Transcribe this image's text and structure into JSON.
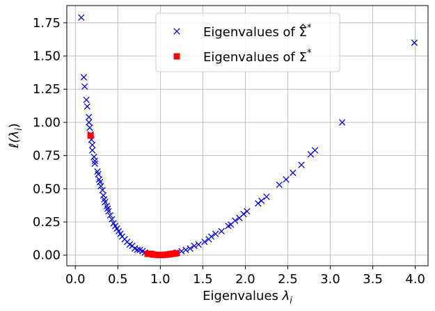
{
  "chart_data": {
    "type": "scatter",
    "xlabel": "Eigenvalues",
    "xlabel_symbol": "λ",
    "xlabel_sub": "i",
    "ylabel": "ℓ(λ",
    "ylabel_sub": "i",
    "ylabel_close": ")",
    "xlim": [
      -0.1,
      4.15
    ],
    "ylim": [
      -0.08,
      1.88
    ],
    "x_ticks": [
      0.0,
      0.5,
      1.0,
      1.5,
      2.0,
      2.5,
      3.0,
      3.5,
      4.0
    ],
    "y_ticks": [
      0.0,
      0.25,
      0.5,
      0.75,
      1.0,
      1.25,
      1.5,
      1.75
    ],
    "x_tick_labels": [
      "0.0",
      "0.5",
      "1.0",
      "1.5",
      "2.0",
      "2.5",
      "3.0",
      "3.5",
      "4.0"
    ],
    "y_tick_labels": [
      "0.00",
      "0.25",
      "0.50",
      "0.75",
      "1.00",
      "1.25",
      "1.50",
      "1.75"
    ],
    "grid": true,
    "legend_position": "top-center",
    "series": [
      {
        "name": "Eigenvalues of Σ̂*",
        "legend_prefix": "Eigenvalues of ",
        "legend_symbol": "Σ",
        "legend_hat": true,
        "legend_sup": "*",
        "marker": "x",
        "color": "#0000ff",
        "points": [
          [
            0.07,
            1.79
          ],
          [
            0.1,
            1.34
          ],
          [
            0.11,
            1.27
          ],
          [
            0.13,
            1.17
          ],
          [
            0.14,
            1.12
          ],
          [
            0.16,
            1.04
          ],
          [
            0.16,
            1.0
          ],
          [
            0.17,
            0.96
          ],
          [
            0.18,
            0.91
          ],
          [
            0.19,
            0.87
          ],
          [
            0.2,
            0.83
          ],
          [
            0.2,
            0.79
          ],
          [
            0.22,
            0.74
          ],
          [
            0.23,
            0.71
          ],
          [
            0.23,
            0.69
          ],
          [
            0.26,
            0.63
          ],
          [
            0.27,
            0.61
          ],
          [
            0.28,
            0.57
          ],
          [
            0.29,
            0.55
          ],
          [
            0.3,
            0.52
          ],
          [
            0.32,
            0.49
          ],
          [
            0.33,
            0.45
          ],
          [
            0.34,
            0.42
          ],
          [
            0.35,
            0.4
          ],
          [
            0.37,
            0.37
          ],
          [
            0.38,
            0.35
          ],
          [
            0.39,
            0.33
          ],
          [
            0.41,
            0.3
          ],
          [
            0.43,
            0.27
          ],
          [
            0.45,
            0.24
          ],
          [
            0.47,
            0.22
          ],
          [
            0.49,
            0.2
          ],
          [
            0.51,
            0.18
          ],
          [
            0.53,
            0.16
          ],
          [
            0.55,
            0.14
          ],
          [
            0.58,
            0.12
          ],
          [
            0.61,
            0.1
          ],
          [
            0.64,
            0.08
          ],
          [
            0.67,
            0.07
          ],
          [
            0.7,
            0.05
          ],
          [
            0.73,
            0.04
          ],
          [
            0.76,
            0.04
          ],
          [
            0.79,
            0.03
          ],
          [
            0.82,
            0.02
          ],
          [
            1.2,
            0.02
          ],
          [
            1.25,
            0.03
          ],
          [
            1.3,
            0.04
          ],
          [
            1.35,
            0.05
          ],
          [
            1.4,
            0.07
          ],
          [
            1.45,
            0.08
          ],
          [
            1.52,
            0.1
          ],
          [
            1.57,
            0.12
          ],
          [
            1.6,
            0.14
          ],
          [
            1.65,
            0.16
          ],
          [
            1.72,
            0.18
          ],
          [
            1.8,
            0.22
          ],
          [
            1.83,
            0.23
          ],
          [
            1.88,
            0.26
          ],
          [
            1.93,
            0.28
          ],
          [
            1.98,
            0.31
          ],
          [
            2.02,
            0.33
          ],
          [
            2.15,
            0.39
          ],
          [
            2.19,
            0.41
          ],
          [
            2.25,
            0.44
          ],
          [
            2.4,
            0.53
          ],
          [
            2.48,
            0.57
          ],
          [
            2.56,
            0.62
          ],
          [
            2.66,
            0.68
          ],
          [
            2.77,
            0.76
          ],
          [
            2.82,
            0.79
          ],
          [
            3.14,
            1.0
          ],
          [
            3.99,
            1.6
          ]
        ]
      },
      {
        "name": "Eigenvalues of Σ*",
        "legend_prefix": "Eigenvalues of ",
        "legend_symbol": "Σ",
        "legend_hat": false,
        "legend_sup": "*",
        "marker": "square",
        "color": "#ff0000",
        "points": [
          [
            0.18,
            0.9
          ],
          [
            0.85,
            0.01
          ],
          [
            0.87,
            0.01
          ],
          [
            0.89,
            0.01
          ],
          [
            0.91,
            0.005
          ],
          [
            0.93,
            0.004
          ],
          [
            0.95,
            0.003
          ],
          [
            0.97,
            0.002
          ],
          [
            0.99,
            0.001
          ],
          [
            1.01,
            0.001
          ],
          [
            1.03,
            0.002
          ],
          [
            1.05,
            0.003
          ],
          [
            1.07,
            0.004
          ],
          [
            1.09,
            0.005
          ],
          [
            1.11,
            0.007
          ],
          [
            1.13,
            0.009
          ],
          [
            1.15,
            0.011
          ],
          [
            1.17,
            0.013
          ],
          [
            1.19,
            0.015
          ]
        ]
      }
    ]
  }
}
